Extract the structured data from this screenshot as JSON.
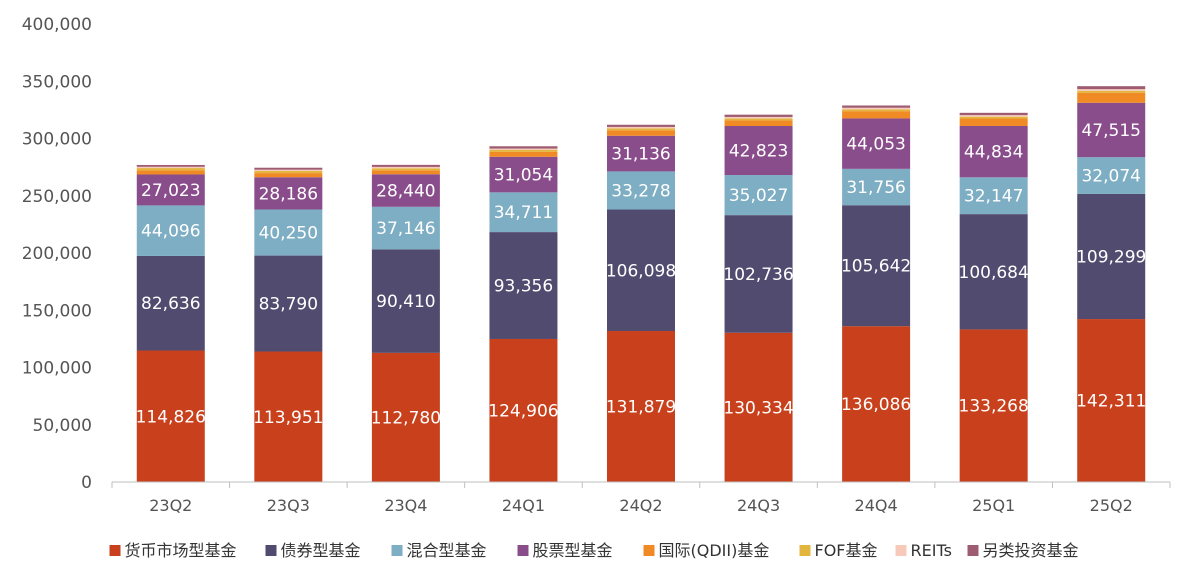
{
  "chart_data": {
    "type": "bar",
    "stacked": true,
    "title": "",
    "xlabel": "",
    "ylabel": "",
    "ylim": [
      0,
      400000
    ],
    "y_ticks": [
      0,
      50000,
      100000,
      150000,
      200000,
      250000,
      300000,
      350000,
      400000
    ],
    "y_tick_labels": [
      "0",
      "50,000",
      "100,000",
      "150,000",
      "200,000",
      "250,000",
      "300,000",
      "350,000",
      "400,000"
    ],
    "grid": false,
    "legend_position": "bottom",
    "categories": [
      "23Q2",
      "23Q3",
      "23Q4",
      "24Q1",
      "24Q2",
      "24Q3",
      "24Q4",
      "25Q1",
      "25Q2"
    ],
    "series": [
      {
        "name": "货币市场型基金",
        "color": "#c8411c",
        "values": [
          114826,
          113951,
          112780,
          124906,
          131879,
          130334,
          136086,
          133268,
          142311
        ],
        "labels": [
          "114,826",
          "113,951",
          "112,780",
          "124,906",
          "131,879",
          "130,334",
          "136,086",
          "133,268",
          "142,311"
        ]
      },
      {
        "name": "债券型基金",
        "color": "#514b6f",
        "values": [
          82636,
          83790,
          90410,
          93356,
          106098,
          102736,
          105642,
          100684,
          109299
        ],
        "labels": [
          "82,636",
          "83,790",
          "90,410",
          "93,356",
          "106,098",
          "102,736",
          "105,642",
          "100,684",
          "109,299"
        ]
      },
      {
        "name": "混合型基金",
        "color": "#7eaec3",
        "values": [
          44096,
          40250,
          37146,
          34711,
          33278,
          35027,
          31756,
          32147,
          32074
        ],
        "labels": [
          "44,096",
          "40,250",
          "37,146",
          "34,711",
          "33,278",
          "35,027",
          "31,756",
          "32,147",
          "32,074"
        ]
      },
      {
        "name": "股票型基金",
        "color": "#8a4d8c",
        "values": [
          27023,
          28186,
          28440,
          31054,
          31136,
          42823,
          44053,
          44834,
          47515
        ],
        "labels": [
          "27,023",
          "28,186",
          "28,440",
          "31,054",
          "31,136",
          "42,823",
          "44,053",
          "44,834",
          "47,515"
        ]
      },
      {
        "name": "国际(QDII)基金",
        "color": "#f08a24",
        "values": [
          3700,
          3600,
          3500,
          4300,
          4800,
          4900,
          6300,
          6500,
          8700
        ]
      },
      {
        "name": "FOF基金",
        "color": "#e2b53c",
        "values": [
          1900,
          1800,
          1700,
          1700,
          1600,
          1600,
          1600,
          1600,
          1700
        ]
      },
      {
        "name": "REITs",
        "color": "#f6c9b8",
        "values": [
          1100,
          1200,
          1200,
          1200,
          1300,
          1400,
          1400,
          1400,
          1500
        ]
      },
      {
        "name": "另类投资基金",
        "color": "#9e5c72",
        "values": [
          1600,
          1700,
          1800,
          2000,
          1900,
          2000,
          2000,
          2000,
          2600
        ]
      }
    ]
  }
}
